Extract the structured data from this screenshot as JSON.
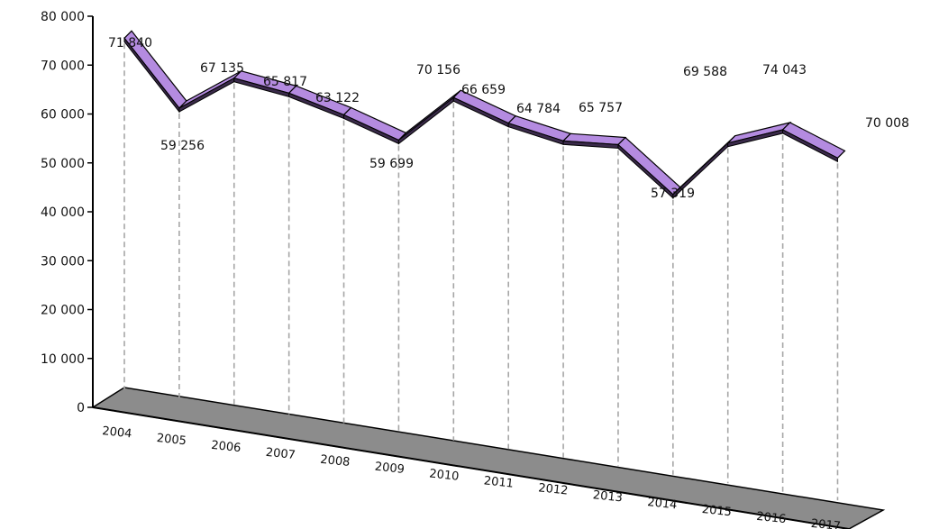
{
  "chart_data": {
    "type": "line",
    "style": "3d-ribbon",
    "categories": [
      "2004",
      "2005",
      "2006",
      "2007",
      "2008",
      "2009",
      "2010",
      "2011",
      "2012",
      "2013",
      "2014",
      "2015",
      "2016",
      "2017"
    ],
    "series": [
      {
        "values": [
          71840,
          59256,
          67135,
          65817,
          63122,
          59699,
          70156,
          66659,
          64784,
          65757,
          57319,
          69588,
          74043,
          70008
        ]
      }
    ],
    "data_labels": [
      "71 840",
      "59 256",
      "67 135",
      "65 817",
      "63 122",
      "59 699",
      "70 156",
      "66 659",
      "64 784",
      "65 757",
      "57 319",
      "69 588",
      "74 043",
      "70 008"
    ],
    "y_ticks": [
      "0",
      "10 000",
      "20 000",
      "30 000",
      "40 000",
      "50 000",
      "60 000",
      "70 000",
      "80 000"
    ],
    "ylim": [
      0,
      80000
    ],
    "title": "",
    "xlabel": "",
    "ylabel": "",
    "grid": false,
    "legend": "none",
    "colors": {
      "ribbon_top": "#b48be0",
      "ribbon_outline": "#000000",
      "floor": "#8c8c8c",
      "drop_lines": "#a6a6a6"
    }
  }
}
